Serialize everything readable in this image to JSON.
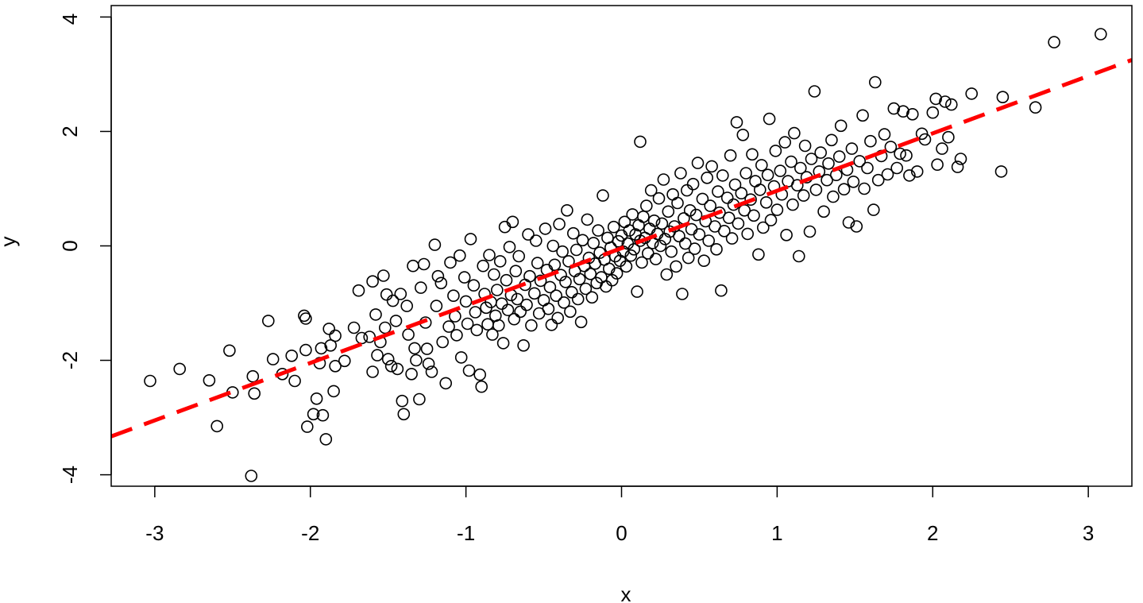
{
  "chart_data": {
    "type": "scatter",
    "title": "",
    "xlabel": "x",
    "ylabel": "y",
    "xlim": [
      -3.28,
      3.28
    ],
    "ylim": [
      -4.2,
      4.2
    ],
    "grid": false,
    "legend": "none",
    "x_ticks": [
      -3,
      -2,
      -1,
      0,
      1,
      2,
      3
    ],
    "y_ticks": [
      -4,
      -2,
      0,
      2,
      4
    ],
    "x_tick_labels": [
      "-3",
      "-2",
      "-1",
      "0",
      "1",
      "2",
      "3"
    ],
    "y_tick_labels": [
      "-4",
      "-2",
      "0",
      "2",
      "4"
    ],
    "point_style": {
      "shape": "open-circle",
      "color": "#000000"
    },
    "points": [
      [
        -3.03,
        -2.36
      ],
      [
        -2.84,
        -2.15
      ],
      [
        -2.65,
        -2.35
      ],
      [
        -2.6,
        -3.15
      ],
      [
        -2.52,
        -1.83
      ],
      [
        -2.5,
        -2.56
      ],
      [
        -2.38,
        -4.02
      ],
      [
        -2.37,
        -2.28
      ],
      [
        -2.36,
        -2.58
      ],
      [
        -2.27,
        -1.31
      ],
      [
        -2.24,
        -1.98
      ],
      [
        -2.18,
        -2.24
      ],
      [
        -2.12,
        -1.92
      ],
      [
        -2.1,
        -2.36
      ],
      [
        -2.04,
        -1.22
      ],
      [
        -2.03,
        -1.27
      ],
      [
        -2.03,
        -1.82
      ],
      [
        -2.02,
        -3.16
      ],
      [
        -1.98,
        -2.94
      ],
      [
        -1.96,
        -2.67
      ],
      [
        -1.94,
        -2.05
      ],
      [
        -1.93,
        -1.79
      ],
      [
        -1.92,
        -2.96
      ],
      [
        -1.9,
        -3.38
      ],
      [
        -1.88,
        -1.45
      ],
      [
        -1.87,
        -1.74
      ],
      [
        -1.85,
        -2.54
      ],
      [
        -1.84,
        -1.57
      ],
      [
        -1.84,
        -2.1
      ],
      [
        -1.78,
        -2.01
      ],
      [
        -1.72,
        -1.43
      ],
      [
        -1.69,
        -0.78
      ],
      [
        -1.67,
        -1.61
      ],
      [
        -1.62,
        -1.59
      ],
      [
        -1.6,
        -0.62
      ],
      [
        -1.6,
        -2.2
      ],
      [
        -1.58,
        -1.2
      ],
      [
        -1.57,
        -1.91
      ],
      [
        -1.55,
        -1.68
      ],
      [
        -1.53,
        -0.52
      ],
      [
        -1.52,
        -1.43
      ],
      [
        -1.51,
        -0.85
      ],
      [
        -1.5,
        -1.98
      ],
      [
        -1.48,
        -2.1
      ],
      [
        -1.47,
        -0.96
      ],
      [
        -1.45,
        -1.31
      ],
      [
        -1.44,
        -2.15
      ],
      [
        -1.42,
        -0.84
      ],
      [
        -1.41,
        -2.71
      ],
      [
        -1.4,
        -2.94
      ],
      [
        -1.38,
        -1.05
      ],
      [
        -1.37,
        -1.55
      ],
      [
        -1.35,
        -2.24
      ],
      [
        -1.34,
        -0.35
      ],
      [
        -1.33,
        -1.79
      ],
      [
        -1.32,
        -2.0
      ],
      [
        -1.3,
        -2.68
      ],
      [
        -1.29,
        -0.73
      ],
      [
        -1.27,
        -0.32
      ],
      [
        -1.26,
        -1.34
      ],
      [
        -1.25,
        -1.8
      ],
      [
        -1.24,
        -2.06
      ],
      [
        -1.22,
        -2.2
      ],
      [
        -1.2,
        0.02
      ],
      [
        -1.19,
        -1.05
      ],
      [
        -1.18,
        -0.53
      ],
      [
        -1.16,
        -0.65
      ],
      [
        -1.15,
        -1.68
      ],
      [
        -1.13,
        -2.4
      ],
      [
        -1.11,
        -1.41
      ],
      [
        -1.1,
        -0.29
      ],
      [
        -1.08,
        -0.87
      ],
      [
        -1.07,
        -1.23
      ],
      [
        -1.06,
        -1.56
      ],
      [
        -1.04,
        -0.17
      ],
      [
        -1.03,
        -1.95
      ],
      [
        -1.01,
        -0.55
      ],
      [
        -1.0,
        -0.97
      ],
      [
        -0.99,
        -1.36
      ],
      [
        -0.98,
        -2.18
      ],
      [
        -0.97,
        0.12
      ],
      [
        -0.95,
        -0.69
      ],
      [
        -0.94,
        -1.16
      ],
      [
        -0.93,
        -1.47
      ],
      [
        -0.91,
        -2.25
      ],
      [
        -0.9,
        -2.46
      ],
      [
        -0.89,
        -0.35
      ],
      [
        -0.88,
        -0.84
      ],
      [
        -0.87,
        -1.08
      ],
      [
        -0.86,
        -1.37
      ],
      [
        -0.85,
        -0.16
      ],
      [
        -0.84,
        -0.98
      ],
      [
        -0.83,
        -1.55
      ],
      [
        -0.82,
        -0.5
      ],
      [
        -0.81,
        -1.22
      ],
      [
        -0.8,
        -0.77
      ],
      [
        -0.79,
        -1.39
      ],
      [
        -0.78,
        -0.27
      ],
      [
        -0.77,
        -1.01
      ],
      [
        -0.76,
        -1.7
      ],
      [
        -0.75,
        0.33
      ],
      [
        -0.74,
        -0.6
      ],
      [
        -0.73,
        -1.12
      ],
      [
        -0.72,
        -0.02
      ],
      [
        -0.71,
        -0.86
      ],
      [
        -0.7,
        0.42
      ],
      [
        -0.69,
        -1.28
      ],
      [
        -0.68,
        -0.44
      ],
      [
        -0.67,
        -0.93
      ],
      [
        -0.66,
        -0.18
      ],
      [
        -0.65,
        -1.15
      ],
      [
        -0.63,
        -1.74
      ],
      [
        -0.62,
        -0.68
      ],
      [
        -0.61,
        -1.03
      ],
      [
        -0.6,
        0.2
      ],
      [
        -0.59,
        -0.53
      ],
      [
        -0.58,
        -1.39
      ],
      [
        -0.56,
        -0.83
      ],
      [
        -0.55,
        0.09
      ],
      [
        -0.54,
        -0.3
      ],
      [
        -0.53,
        -1.18
      ],
      [
        -0.52,
        -0.61
      ],
      [
        -0.5,
        -0.95
      ],
      [
        -0.49,
        0.3
      ],
      [
        -0.48,
        -0.42
      ],
      [
        -0.47,
        -1.1
      ],
      [
        -0.46,
        -0.72
      ],
      [
        -0.45,
        -1.38
      ],
      [
        -0.44,
        0.0
      ],
      [
        -0.43,
        -0.33
      ],
      [
        -0.42,
        -0.87
      ],
      [
        -0.41,
        -1.26
      ],
      [
        -0.4,
        0.38
      ],
      [
        -0.39,
        -0.51
      ],
      [
        -0.38,
        -0.1
      ],
      [
        -0.37,
        -0.99
      ],
      [
        -0.36,
        -0.63
      ],
      [
        -0.35,
        0.62
      ],
      [
        -0.34,
        -0.27
      ],
      [
        -0.33,
        -1.15
      ],
      [
        -0.32,
        -0.81
      ],
      [
        -0.31,
        0.22
      ],
      [
        -0.3,
        -0.44
      ],
      [
        -0.29,
        -0.07
      ],
      [
        -0.28,
        -0.93
      ],
      [
        -0.27,
        -0.58
      ],
      [
        -0.26,
        -1.33
      ],
      [
        -0.25,
        0.1
      ],
      [
        -0.24,
        -0.35
      ],
      [
        -0.23,
        -0.75
      ],
      [
        -0.22,
        0.46
      ],
      [
        -0.21,
        -0.21
      ],
      [
        -0.2,
        -0.49
      ],
      [
        -0.19,
        -0.9
      ],
      [
        -0.18,
        0.05
      ],
      [
        -0.17,
        -0.31
      ],
      [
        -0.16,
        -0.65
      ],
      [
        -0.15,
        0.27
      ],
      [
        -0.14,
        -0.12
      ],
      [
        -0.13,
        -0.55
      ],
      [
        -0.12,
        0.88
      ],
      [
        -0.11,
        -0.24
      ],
      [
        -0.1,
        -0.71
      ],
      [
        -0.09,
        0.14
      ],
      [
        -0.08,
        -0.4
      ],
      [
        -0.07,
        -0.03
      ],
      [
        -0.06,
        -0.6
      ],
      [
        -0.05,
        0.33
      ],
      [
        -0.04,
        -0.18
      ],
      [
        -0.03,
        -0.48
      ],
      [
        -0.02,
        0.08
      ],
      [
        -0.01,
        -0.26
      ],
      [
        0.0,
        0.18
      ],
      [
        0.01,
        -0.1
      ],
      [
        0.02,
        0.42
      ],
      [
        0.03,
        -0.36
      ],
      [
        0.04,
        0.04
      ],
      [
        0.05,
        0.27
      ],
      [
        0.06,
        -0.17
      ],
      [
        0.07,
        0.55
      ],
      [
        0.08,
        -0.06
      ],
      [
        0.09,
        0.2
      ],
      [
        0.1,
        -0.8
      ],
      [
        0.11,
        0.36
      ],
      [
        0.12,
        0.09
      ],
      [
        0.12,
        1.82
      ],
      [
        0.13,
        -0.29
      ],
      [
        0.14,
        0.51
      ],
      [
        0.15,
        0.14
      ],
      [
        0.16,
        0.7
      ],
      [
        0.17,
        -0.13
      ],
      [
        0.18,
        0.3
      ],
      [
        0.19,
        0.97
      ],
      [
        0.2,
        0.05
      ],
      [
        0.21,
        0.44
      ],
      [
        0.22,
        -0.23
      ],
      [
        0.23,
        0.21
      ],
      [
        0.24,
        0.83
      ],
      [
        0.25,
        0.0
      ],
      [
        0.26,
        0.39
      ],
      [
        0.27,
        1.16
      ],
      [
        0.28,
        0.12
      ],
      [
        0.29,
        -0.5
      ],
      [
        0.3,
        0.6
      ],
      [
        0.31,
        0.25
      ],
      [
        0.32,
        -0.1
      ],
      [
        0.33,
        0.9
      ],
      [
        0.34,
        0.34
      ],
      [
        0.35,
        -0.36
      ],
      [
        0.36,
        0.75
      ],
      [
        0.37,
        0.17
      ],
      [
        0.38,
        1.27
      ],
      [
        0.39,
        -0.84
      ],
      [
        0.4,
        0.48
      ],
      [
        0.41,
        0.04
      ],
      [
        0.42,
        0.97
      ],
      [
        0.43,
        -0.21
      ],
      [
        0.44,
        0.62
      ],
      [
        0.45,
        0.29
      ],
      [
        0.46,
        1.08
      ],
      [
        0.47,
        -0.05
      ],
      [
        0.48,
        0.54
      ],
      [
        0.49,
        1.45
      ],
      [
        0.5,
        0.2
      ],
      [
        0.52,
        0.82
      ],
      [
        0.53,
        -0.26
      ],
      [
        0.54,
        0.43
      ],
      [
        0.55,
        1.19
      ],
      [
        0.56,
        0.09
      ],
      [
        0.57,
        0.7
      ],
      [
        0.58,
        1.39
      ],
      [
        0.6,
        0.34
      ],
      [
        0.61,
        -0.06
      ],
      [
        0.62,
        0.95
      ],
      [
        0.63,
        0.58
      ],
      [
        0.64,
        -0.78
      ],
      [
        0.65,
        1.23
      ],
      [
        0.66,
        0.26
      ],
      [
        0.68,
        0.84
      ],
      [
        0.69,
        0.49
      ],
      [
        0.7,
        1.58
      ],
      [
        0.71,
        0.13
      ],
      [
        0.72,
        0.72
      ],
      [
        0.73,
        1.07
      ],
      [
        0.74,
        2.16
      ],
      [
        0.75,
        0.39
      ],
      [
        0.77,
        0.92
      ],
      [
        0.78,
        1.94
      ],
      [
        0.79,
        0.62
      ],
      [
        0.8,
        1.27
      ],
      [
        0.81,
        0.21
      ],
      [
        0.83,
        0.81
      ],
      [
        0.84,
        1.6
      ],
      [
        0.85,
        0.53
      ],
      [
        0.86,
        1.13
      ],
      [
        0.88,
        -0.15
      ],
      [
        0.89,
        0.98
      ],
      [
        0.9,
        1.41
      ],
      [
        0.91,
        0.32
      ],
      [
        0.93,
        0.76
      ],
      [
        0.94,
        1.24
      ],
      [
        0.95,
        2.22
      ],
      [
        0.96,
        0.45
      ],
      [
        0.98,
        1.04
      ],
      [
        0.99,
        1.66
      ],
      [
        1.0,
        0.63
      ],
      [
        1.02,
        1.31
      ],
      [
        1.03,
        0.9
      ],
      [
        1.05,
        1.81
      ],
      [
        1.06,
        0.19
      ],
      [
        1.07,
        1.13
      ],
      [
        1.09,
        1.47
      ],
      [
        1.1,
        0.72
      ],
      [
        1.11,
        1.97
      ],
      [
        1.13,
        1.06
      ],
      [
        1.14,
        -0.18
      ],
      [
        1.15,
        1.36
      ],
      [
        1.17,
        0.88
      ],
      [
        1.18,
        1.75
      ],
      [
        1.19,
        1.2
      ],
      [
        1.21,
        0.25
      ],
      [
        1.22,
        1.52
      ],
      [
        1.24,
        2.7
      ],
      [
        1.25,
        0.98
      ],
      [
        1.27,
        1.3
      ],
      [
        1.28,
        1.63
      ],
      [
        1.3,
        0.6
      ],
      [
        1.32,
        1.15
      ],
      [
        1.33,
        1.44
      ],
      [
        1.35,
        1.85
      ],
      [
        1.36,
        0.86
      ],
      [
        1.38,
        1.24
      ],
      [
        1.4,
        1.56
      ],
      [
        1.41,
        2.1
      ],
      [
        1.43,
        0.99
      ],
      [
        1.45,
        1.33
      ],
      [
        1.46,
        0.41
      ],
      [
        1.48,
        1.7
      ],
      [
        1.49,
        1.12
      ],
      [
        1.51,
        0.34
      ],
      [
        1.53,
        1.48
      ],
      [
        1.55,
        2.28
      ],
      [
        1.56,
        1.0
      ],
      [
        1.58,
        1.36
      ],
      [
        1.6,
        1.83
      ],
      [
        1.62,
        0.63
      ],
      [
        1.63,
        2.86
      ],
      [
        1.65,
        1.15
      ],
      [
        1.67,
        1.57
      ],
      [
        1.69,
        1.95
      ],
      [
        1.71,
        1.25
      ],
      [
        1.73,
        1.73
      ],
      [
        1.75,
        2.4
      ],
      [
        1.77,
        1.36
      ],
      [
        1.79,
        1.61
      ],
      [
        1.81,
        2.35
      ],
      [
        1.83,
        1.58
      ],
      [
        1.85,
        1.23
      ],
      [
        1.87,
        2.3
      ],
      [
        1.9,
        1.3
      ],
      [
        1.93,
        1.96
      ],
      [
        1.95,
        1.86
      ],
      [
        2.0,
        2.33
      ],
      [
        2.02,
        2.57
      ],
      [
        2.03,
        1.42
      ],
      [
        2.06,
        1.7
      ],
      [
        2.08,
        2.52
      ],
      [
        2.1,
        1.9
      ],
      [
        2.12,
        2.47
      ],
      [
        2.16,
        1.38
      ],
      [
        2.18,
        1.52
      ],
      [
        2.25,
        2.66
      ],
      [
        2.44,
        1.3
      ],
      [
        2.45,
        2.6
      ],
      [
        2.66,
        2.42
      ],
      [
        2.78,
        3.56
      ],
      [
        3.08,
        3.7
      ]
    ],
    "regression_line": {
      "style": "dashed",
      "color": "#ff0000",
      "x": [
        -3.28,
        3.28
      ],
      "y": [
        -3.33,
        3.25
      ]
    }
  }
}
